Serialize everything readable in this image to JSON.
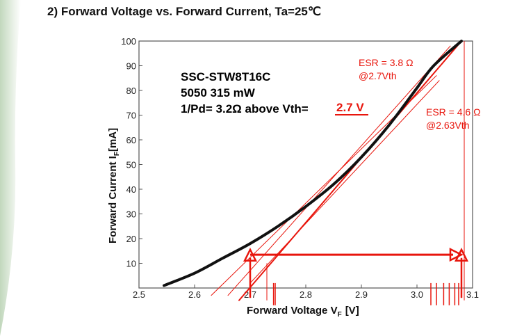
{
  "page": {
    "heading": "2) Forward Voltage vs. Forward Current, Ta=25℃"
  },
  "colors": {
    "annotation": "#e8150c",
    "curve": "#111111",
    "left_panel": "#c9dcc4"
  },
  "chart_data": {
    "type": "line",
    "title": "2) Forward Voltage vs. Forward Current, Ta=25℃",
    "xlabel_main": "Forward Voltage V",
    "xlabel_sub": "F",
    "xlabel_unit": "[V]",
    "ylabel_main": "Forward Current I",
    "ylabel_sub": "F",
    "ylabel_unit": "[mA]",
    "xlim": [
      2.5,
      3.1
    ],
    "ylim": [
      0,
      100
    ],
    "x_ticks": [
      2.5,
      2.6,
      2.7,
      2.8,
      2.9,
      3.0,
      3.1
    ],
    "x_tick_labels": [
      "2.5",
      "2.6",
      "2.7",
      "2.8",
      "2.9",
      "3.0",
      "3.1"
    ],
    "y_ticks": [
      10,
      20,
      30,
      40,
      50,
      60,
      70,
      80,
      90,
      100
    ],
    "y_tick_labels": [
      "10",
      "20",
      "30",
      "40",
      "50",
      "60",
      "70",
      "80",
      "90",
      "100"
    ],
    "grid": false,
    "series": [
      {
        "x": [
          2.545,
          2.6,
          2.65,
          2.7,
          2.75,
          2.8,
          2.85,
          2.9,
          2.95,
          3.0,
          3.03,
          3.08
        ],
        "y": [
          1,
          6,
          12,
          18,
          25,
          33,
          42,
          53,
          66,
          81,
          90,
          100
        ]
      }
    ],
    "fit_lines": [
      {
        "x": [
          2.68,
          3.08
        ],
        "y": [
          -5,
          100
        ]
      },
      {
        "x": [
          2.66,
          3.06
        ],
        "y": [
          -3,
          98
        ]
      },
      {
        "x": [
          2.7,
          3.04
        ],
        "y": [
          2,
          84
        ]
      },
      {
        "x": [
          2.63,
          3.035
        ],
        "y": [
          -3,
          86
        ]
      }
    ],
    "vertical_marks": [
      {
        "x": 2.73,
        "y": [
          -5,
          10
        ]
      },
      {
        "x": 3.085,
        "y": [
          -5,
          100
        ]
      }
    ],
    "small_ticks": [
      2.745,
      2.742,
      3.025,
      3.035,
      3.048,
      3.058,
      3.068,
      3.075
    ],
    "arrows": {
      "horizontal": {
        "x": [
          2.7,
          3.08
        ],
        "y": 13.5
      },
      "up_left": {
        "x": 2.7,
        "y": [
          -4,
          15
        ]
      },
      "up_right": {
        "x": 3.08,
        "y": [
          -4,
          15
        ]
      }
    },
    "annotations": {
      "part_line": "SSC-STW8T16C",
      "package_line": "5050 315 mW",
      "pd_line": "1/Pd=  3.2Ω above Vth=",
      "vth_value": "2.7 V",
      "esr1_line1": "ESR = 3.8 Ω",
      "esr1_line2": "@2.7Vth",
      "esr2_line1": "ESR = 4.6 Ω",
      "esr2_line2": "@2.63Vth"
    }
  }
}
